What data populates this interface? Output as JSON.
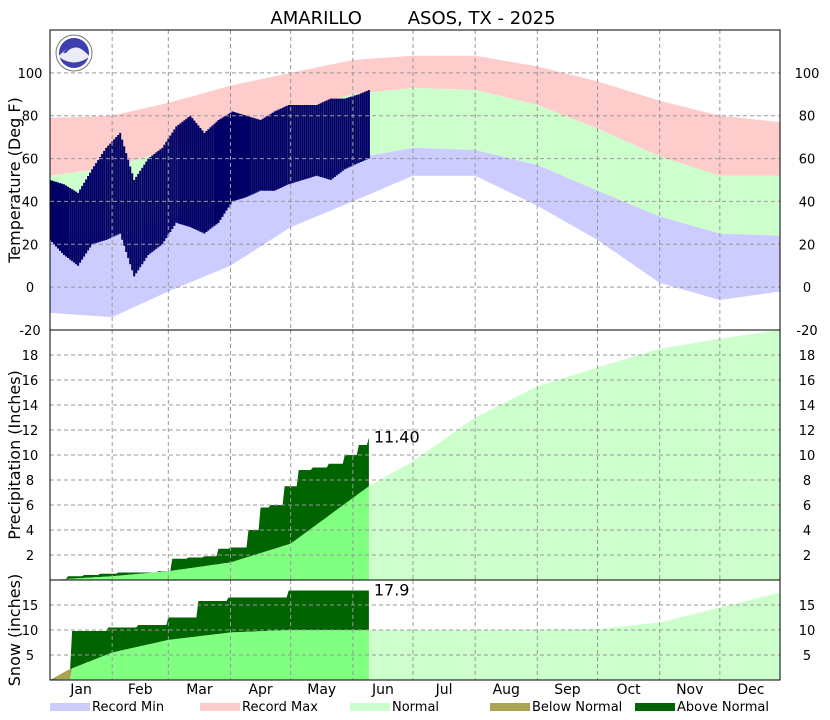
{
  "title": "AMARILLO        ASOS, TX - 2025",
  "colors": {
    "record_min": "#ccccff",
    "record_max": "#ffcccc",
    "normal": "#ccffcc",
    "normal_obs": "#80ff80",
    "below_normal": "#aaa355",
    "above_normal": "#006400",
    "observed_temp": "#000066",
    "grid": "#999999"
  },
  "legend": [
    "Record Min",
    "Record Max",
    "Normal",
    "Below Normal",
    "Above Normal"
  ],
  "months": [
    "Jan",
    "Feb",
    "Mar",
    "Apr",
    "May",
    "Jun",
    "Jul",
    "Aug",
    "Sep",
    "Oct",
    "Nov",
    "Dec"
  ],
  "icon": "noaa-logo-icon",
  "chart_data": [
    {
      "type": "area",
      "panel": "temperature",
      "ylabel": "Temperature (Deg F)",
      "ylim": [
        -20,
        120
      ],
      "yticks": [
        -20,
        0,
        20,
        40,
        60,
        80,
        100
      ],
      "grid": true,
      "series": [
        {
          "name": "Record Max",
          "x": [
            1,
            32,
            60,
            91,
            121,
            152,
            182,
            213,
            244,
            274,
            305,
            335,
            365
          ],
          "values": [
            79,
            80,
            86,
            94,
            100,
            106,
            108,
            108,
            103,
            96,
            87,
            80,
            77
          ]
        },
        {
          "name": "Normal",
          "x": [
            1,
            32,
            60,
            91,
            121,
            152,
            182,
            213,
            244,
            274,
            305,
            335,
            365
          ],
          "values": [
            [
              24,
              52
            ],
            [
              26,
              56
            ],
            [
              32,
              64
            ],
            [
              40,
              73
            ],
            [
              50,
              82
            ],
            [
              60,
              90
            ],
            [
              65,
              93
            ],
            [
              64,
              92
            ],
            [
              57,
              85
            ],
            [
              45,
              74
            ],
            [
              33,
              61
            ],
            [
              25,
              52
            ],
            [
              24,
              52
            ]
          ]
        },
        {
          "name": "Record Min",
          "x": [
            1,
            32,
            60,
            91,
            121,
            152,
            182,
            213,
            244,
            274,
            305,
            335,
            365
          ],
          "values": [
            -12,
            -14,
            -2,
            10,
            28,
            40,
            52,
            52,
            38,
            22,
            2,
            -6,
            -2
          ]
        },
        {
          "name": "Observed",
          "x": [
            1,
            8,
            15,
            22,
            29,
            36,
            43,
            50,
            57,
            64,
            71,
            78,
            85,
            92,
            99,
            106,
            113,
            120,
            127,
            134,
            141,
            148,
            155,
            160
          ],
          "values": [
            [
              22,
              50
            ],
            [
              15,
              48
            ],
            [
              10,
              44
            ],
            [
              20,
              55
            ],
            [
              22,
              65
            ],
            [
              25,
              72
            ],
            [
              5,
              50
            ],
            [
              15,
              60
            ],
            [
              20,
              65
            ],
            [
              30,
              75
            ],
            [
              28,
              80
            ],
            [
              25,
              72
            ],
            [
              30,
              78
            ],
            [
              40,
              82
            ],
            [
              42,
              80
            ],
            [
              45,
              78
            ],
            [
              45,
              82
            ],
            [
              48,
              85
            ],
            [
              50,
              85
            ],
            [
              52,
              85
            ],
            [
              50,
              88
            ],
            [
              55,
              88
            ],
            [
              58,
              90
            ],
            [
              60,
              92
            ]
          ]
        }
      ]
    },
    {
      "type": "area",
      "panel": "precipitation",
      "ylabel": "Precipitation (Inches)",
      "ylim": [
        0,
        20
      ],
      "yticks": [
        2,
        4,
        6,
        8,
        10,
        12,
        14,
        16,
        18
      ],
      "annotation": "11.40",
      "series": [
        {
          "name": "Normal",
          "x": [
            1,
            32,
            60,
            91,
            121,
            160,
            182,
            213,
            244,
            274,
            305,
            335,
            365
          ],
          "values": [
            0,
            0.3,
            0.7,
            1.4,
            2.9,
            7.5,
            9.5,
            13,
            15.5,
            17,
            18.5,
            19.3,
            20
          ]
        },
        {
          "name": "Observed",
          "x": [
            1,
            10,
            18,
            26,
            35,
            45,
            55,
            62,
            70,
            78,
            85,
            91,
            100,
            106,
            111,
            118,
            125,
            132,
            140,
            148,
            155,
            160
          ],
          "values": [
            0,
            0.3,
            0.4,
            0.5,
            0.6,
            0.6,
            0.7,
            1.7,
            1.8,
            1.9,
            2.5,
            2.6,
            4.0,
            5.8,
            6.0,
            7.5,
            8.8,
            9.0,
            9.3,
            10.0,
            10.8,
            11.4
          ]
        }
      ]
    },
    {
      "type": "area",
      "panel": "snow",
      "ylabel": "Snow (inches)",
      "ylim": [
        0,
        20
      ],
      "yticks": [
        5,
        10,
        15
      ],
      "annotation": "17.9",
      "series": [
        {
          "name": "Normal",
          "x": [
            1,
            10,
            32,
            60,
            91,
            121,
            160,
            213,
            274,
            305,
            335,
            365
          ],
          "values": [
            0,
            2,
            5.5,
            8,
            9.5,
            10,
            10,
            10,
            10.2,
            11.5,
            14.5,
            17.5
          ]
        },
        {
          "name": "Observed",
          "x": [
            1,
            5,
            12,
            30,
            45,
            60,
            75,
            90,
            120,
            160
          ],
          "values": [
            0,
            0.2,
            9.8,
            10.5,
            11,
            12.5,
            15.8,
            16.5,
            17.9,
            17.9
          ]
        }
      ]
    }
  ]
}
